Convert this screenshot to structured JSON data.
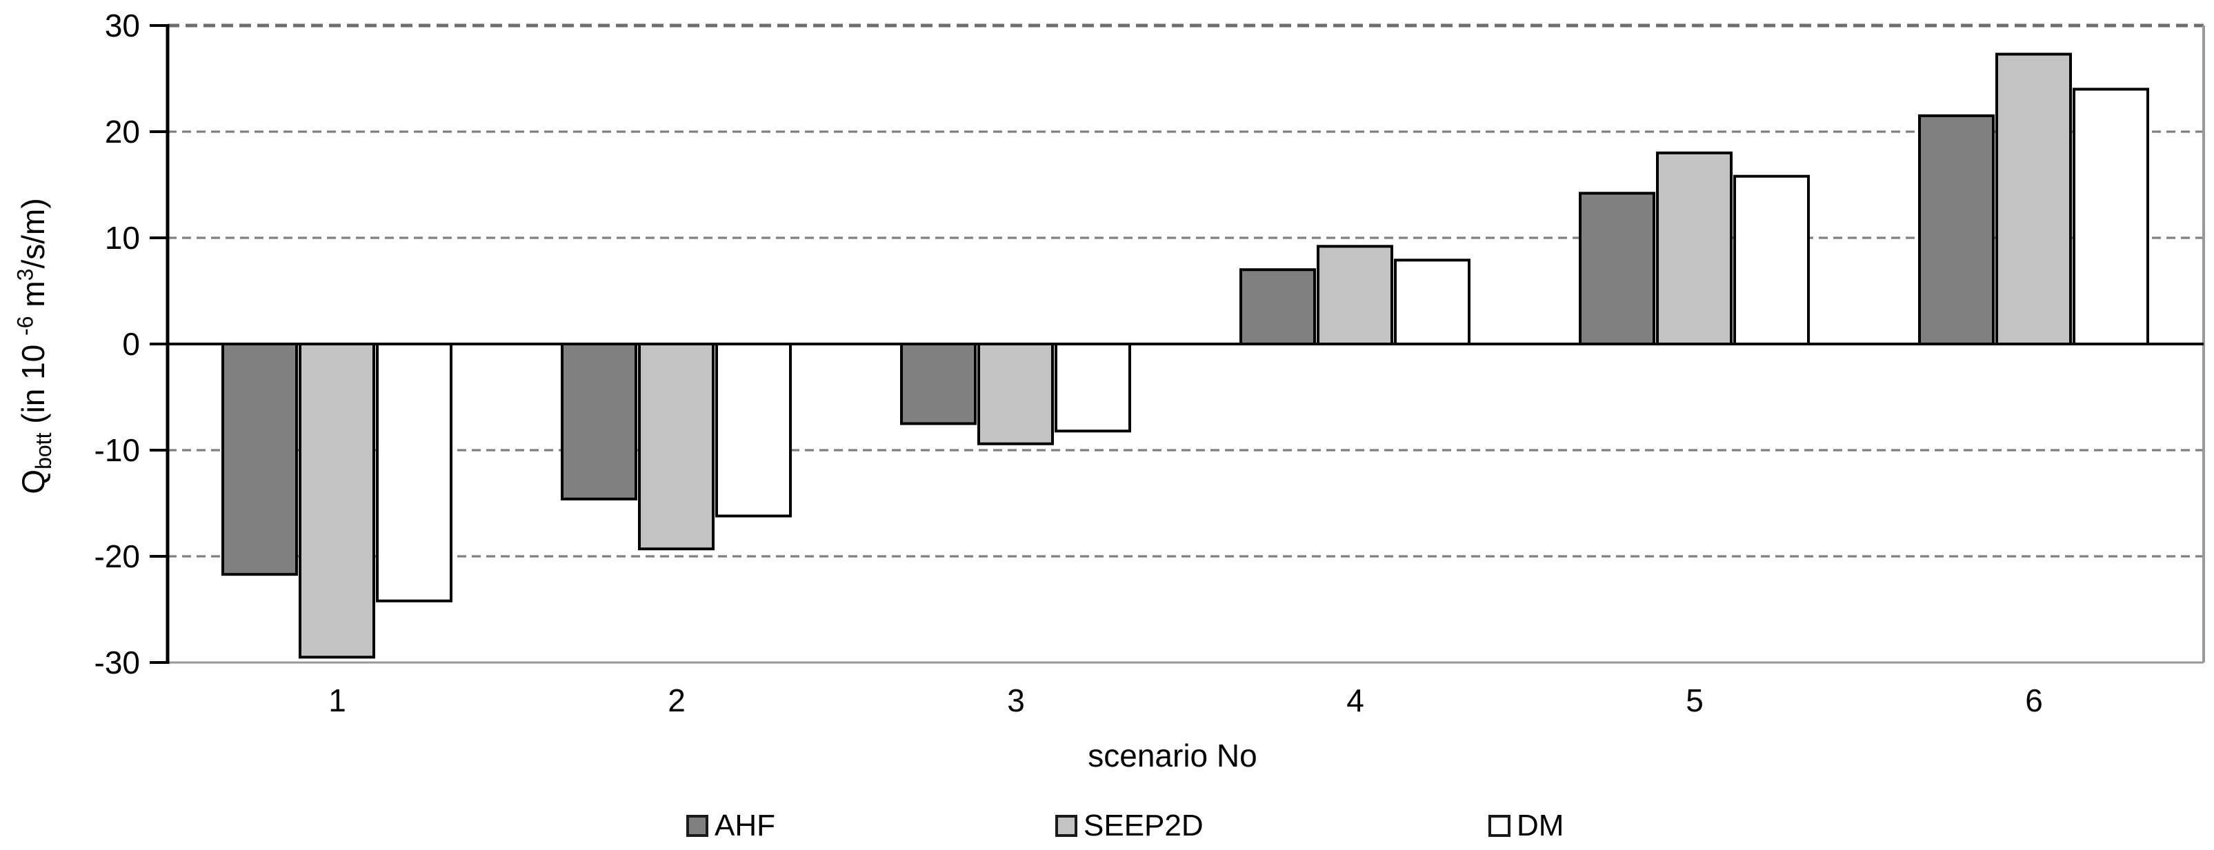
{
  "chart_data": {
    "type": "bar",
    "title": "",
    "xlabel": "scenario No",
    "ylabel": "Qbott (in 10^-6 m3/s/m)",
    "ylabel_parts": {
      "base1": "Q",
      "sub": "bott",
      "base2": " (in 10 ",
      "sup1": "-6",
      "base3": " m",
      "sup2": "3",
      "base4": "/s/m)"
    },
    "categories": [
      "1",
      "2",
      "3",
      "4",
      "5",
      "6"
    ],
    "series": [
      {
        "name": "AHF",
        "color": "#808080",
        "values": [
          -21.7,
          -14.6,
          -7.5,
          7.0,
          14.2,
          21.5
        ]
      },
      {
        "name": "SEEP2D",
        "color": "#c3c3c3",
        "values": [
          -29.5,
          -19.3,
          -9.4,
          9.2,
          18.0,
          27.3
        ]
      },
      {
        "name": "DM",
        "color": "#ffffff",
        "values": [
          -24.2,
          -16.2,
          -8.2,
          7.9,
          15.8,
          24.0
        ]
      }
    ],
    "yticks": [
      30,
      20,
      10,
      0,
      -10,
      -20,
      -30
    ],
    "ylim": [
      -30,
      30
    ],
    "grid": "horizontal-dashed",
    "legend_position": "bottom",
    "colors": {
      "bar_border": "#000000",
      "gridline": "#7f7f7f",
      "zero_line": "#000000",
      "frame": "#999999",
      "text": "#000000"
    }
  }
}
